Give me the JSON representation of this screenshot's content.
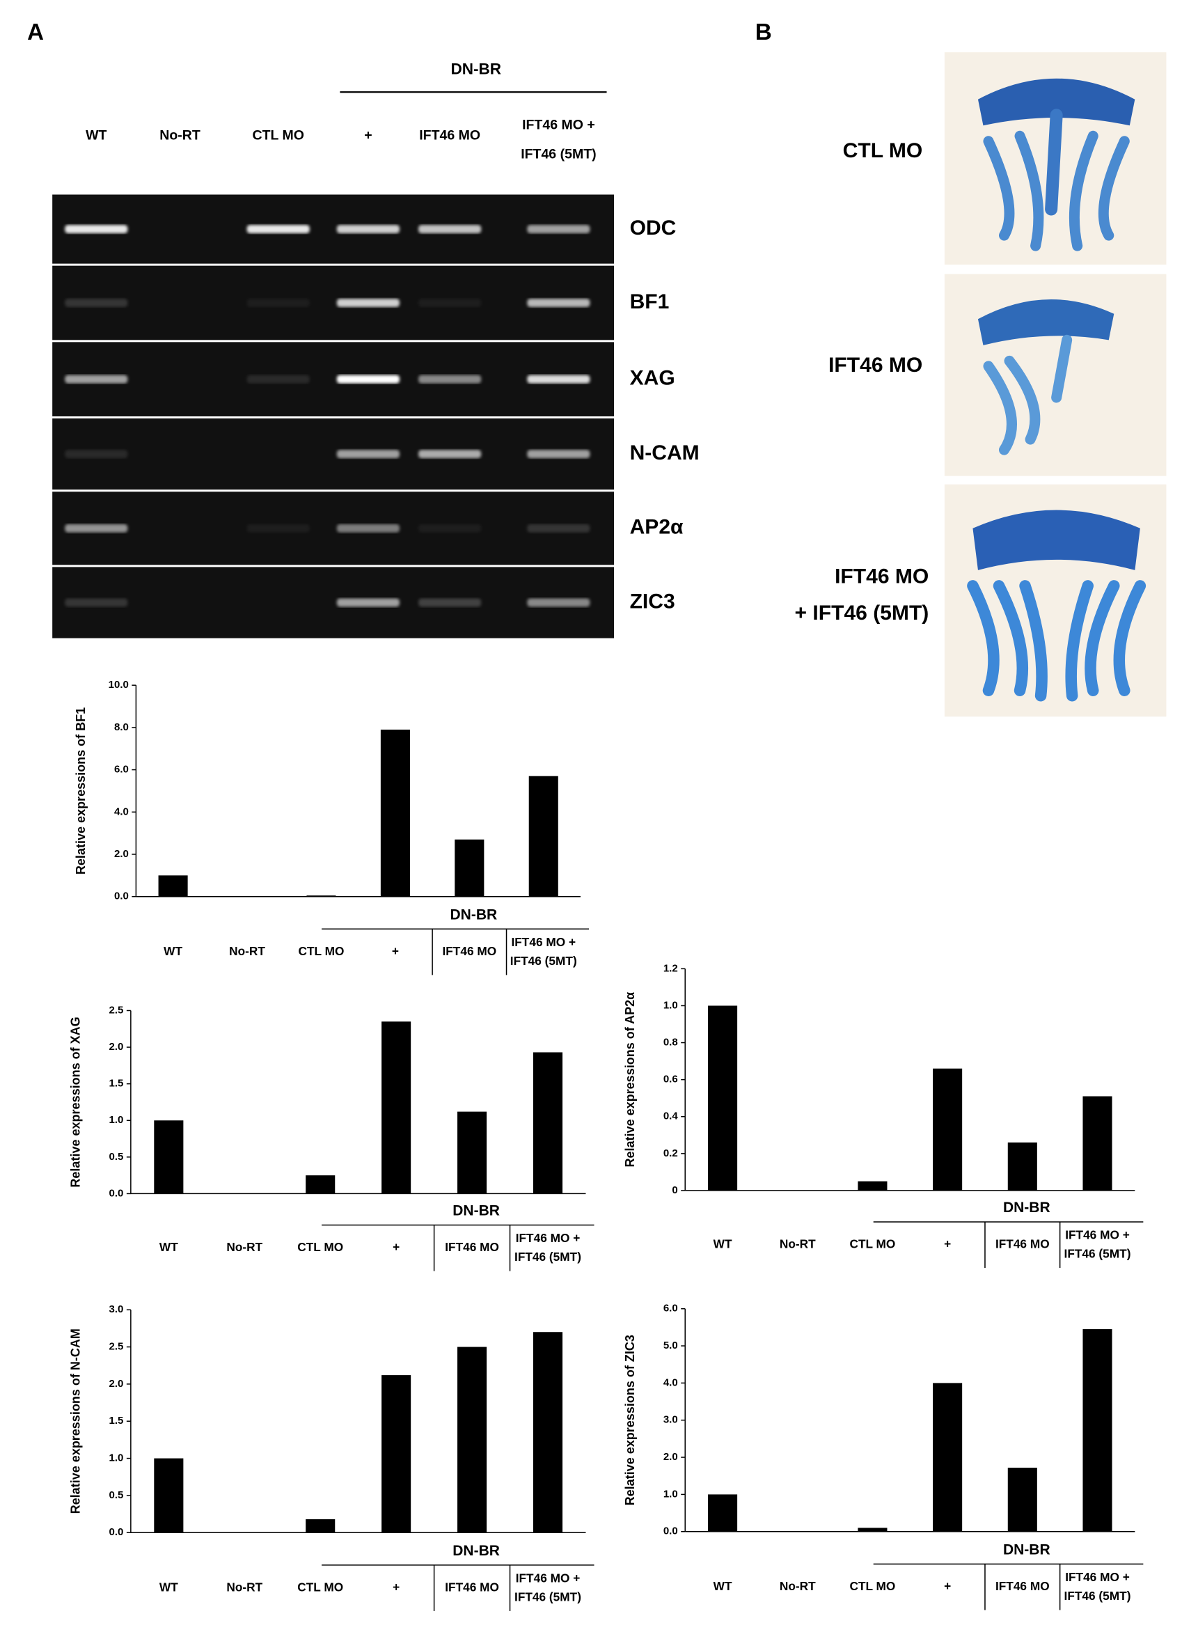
{
  "panel_a": "A",
  "panel_b_letter": "B",
  "gel": {
    "group_label": "DN-BR",
    "lanes": [
      "WT",
      "No-RT",
      "CTL MO",
      "+",
      "IFT46 MO",
      [
        "IFT46 MO +",
        "IFT46 (5MT)"
      ]
    ],
    "genes": [
      "ODC",
      "BF1",
      "XAG",
      "N-CAM",
      "AP2α",
      "ZIC3"
    ]
  },
  "panel_b": {
    "labels": [
      "CTL MO",
      "IFT46 MO",
      [
        "IFT46 MO",
        "+ IFT46 (5MT)"
      ]
    ]
  },
  "chart_data": [
    {
      "type": "bar",
      "y_label": "Relative expressions of BF1",
      "group_label": "DN-BR",
      "color": "#000000",
      "categories": [
        "WT",
        "No-RT",
        "CTL MO",
        "+",
        "IFT46 MO",
        "IFT46 MO + IFT46 (5MT)"
      ],
      "values": [
        1.0,
        0,
        0.05,
        7.9,
        2.7,
        5.7
      ],
      "ylim": [
        0,
        10
      ],
      "yticks": [
        {
          "value": 0,
          "label": "0.0"
        },
        {
          "value": 2,
          "label": "2.0"
        },
        {
          "value": 4,
          "label": "4.0"
        },
        {
          "value": 6,
          "label": "6.0"
        },
        {
          "value": 8,
          "label": "8.0"
        },
        {
          "value": 10,
          "label": "10.0"
        }
      ]
    },
    {
      "type": "bar",
      "y_label": "Relative expressions of XAG",
      "group_label": "DN-BR",
      "color": "#000000",
      "categories": [
        "WT",
        "No-RT",
        "CTL MO",
        "+",
        "IFT46 MO",
        "IFT46 MO + IFT46 (5MT)"
      ],
      "values": [
        1.0,
        0,
        0.25,
        2.35,
        1.12,
        1.93
      ],
      "ylim": [
        0,
        2.5
      ],
      "yticks": [
        {
          "value": 0,
          "label": "0.0"
        },
        0.5,
        {
          "value": 1,
          "label": "1.0"
        },
        1.5,
        {
          "value": 2,
          "label": "2.0"
        },
        2.5
      ]
    },
    {
      "type": "bar",
      "y_label": "Relative expressions of AP2α",
      "group_label": "DN-BR",
      "color": "#000000",
      "categories": [
        "WT",
        "No-RT",
        "CTL MO",
        "+",
        "IFT46 MO",
        "IFT46 MO + IFT46 (5MT)"
      ],
      "values": [
        1.0,
        0,
        0.05,
        0.66,
        0.26,
        0.51
      ],
      "ylim": [
        0,
        1.2
      ],
      "yticks": [
        0,
        0.2,
        0.4,
        0.6,
        0.8,
        {
          "value": 1,
          "label": "1.0"
        },
        1.2
      ]
    },
    {
      "type": "bar",
      "y_label": "Relative expressions of N-CAM",
      "group_label": "DN-BR",
      "color": "#000000",
      "categories": [
        "WT",
        "No-RT",
        "CTL MO",
        "+",
        "IFT46 MO",
        "IFT46 MO + IFT46 (5MT)"
      ],
      "values": [
        1.0,
        0,
        0.18,
        2.12,
        2.5,
        2.7
      ],
      "ylim": [
        0,
        3
      ],
      "yticks": [
        {
          "value": 0,
          "label": "0.0"
        },
        0.5,
        {
          "value": 1,
          "label": "1.0"
        },
        1.5,
        {
          "value": 2,
          "label": "2.0"
        },
        2.5,
        {
          "value": 3,
          "label": "3.0"
        }
      ]
    },
    {
      "type": "bar",
      "y_label": "Relative expressions of ZIC3",
      "group_label": "DN-BR",
      "color": "#000000",
      "categories": [
        "WT",
        "No-RT",
        "CTL MO",
        "+",
        "IFT46 MO",
        "IFT46 MO + IFT46 (5MT)"
      ],
      "values": [
        1.0,
        0,
        0.1,
        4.0,
        1.72,
        5.45
      ],
      "ylim": [
        0,
        6
      ],
      "yticks": [
        {
          "value": 0,
          "label": "0.0"
        },
        {
          "value": 1,
          "label": "1.0"
        },
        {
          "value": 2,
          "label": "2.0"
        },
        {
          "value": 3,
          "label": "3.0"
        },
        {
          "value": 4,
          "label": "4.0"
        },
        {
          "value": 5,
          "label": "5.0"
        },
        {
          "value": 6,
          "label": "6.0"
        }
      ]
    }
  ]
}
